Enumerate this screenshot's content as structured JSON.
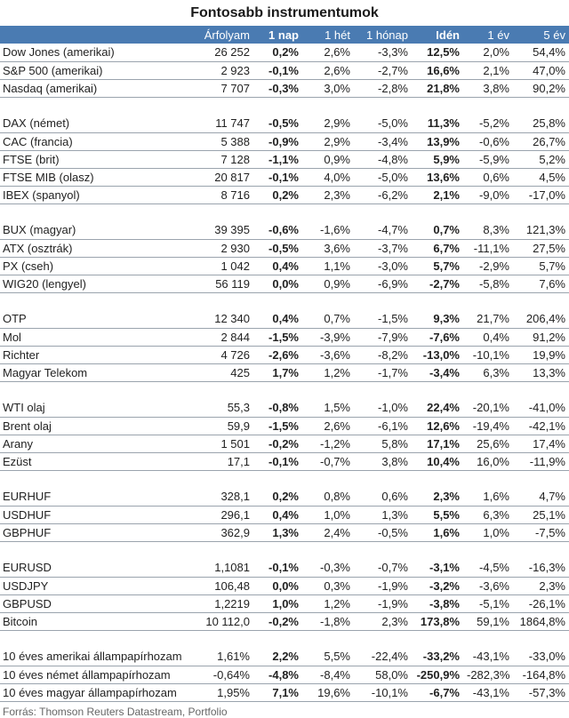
{
  "title": "Fontosabb instrumentumok",
  "columns": [
    "",
    "Árfolyam",
    "1 nap",
    "1 hét",
    "1 hónap",
    "Idén",
    "1 év",
    "5 év"
  ],
  "groups": [
    [
      [
        "Dow Jones (amerikai)",
        "26 252",
        "0,2%",
        "2,6%",
        "-3,3%",
        "12,5%",
        "2,0%",
        "54,4%"
      ],
      [
        "S&P 500 (amerikai)",
        "2 923",
        "-0,1%",
        "2,6%",
        "-2,7%",
        "16,6%",
        "2,1%",
        "47,0%"
      ],
      [
        "Nasdaq (amerikai)",
        "7 707",
        "-0,3%",
        "3,0%",
        "-2,8%",
        "21,8%",
        "3,8%",
        "90,2%"
      ]
    ],
    [
      [
        "DAX (német)",
        "11 747",
        "-0,5%",
        "2,9%",
        "-5,0%",
        "11,3%",
        "-5,2%",
        "25,8%"
      ],
      [
        "CAC (francia)",
        "5 388",
        "-0,9%",
        "2,9%",
        "-3,4%",
        "13,9%",
        "-0,6%",
        "26,7%"
      ],
      [
        "FTSE (brit)",
        "7 128",
        "-1,1%",
        "0,9%",
        "-4,8%",
        "5,9%",
        "-5,9%",
        "5,2%"
      ],
      [
        "FTSE MIB (olasz)",
        "20 817",
        "-0,1%",
        "4,0%",
        "-5,0%",
        "13,6%",
        "0,6%",
        "4,5%"
      ],
      [
        "IBEX (spanyol)",
        "8 716",
        "0,2%",
        "2,3%",
        "-6,2%",
        "2,1%",
        "-9,0%",
        "-17,0%"
      ]
    ],
    [
      [
        "BUX (magyar)",
        "39 395",
        "-0,6%",
        "-1,6%",
        "-4,7%",
        "0,7%",
        "8,3%",
        "121,3%"
      ],
      [
        "ATX (osztrák)",
        "2 930",
        "-0,5%",
        "3,6%",
        "-3,7%",
        "6,7%",
        "-11,1%",
        "27,5%"
      ],
      [
        "PX (cseh)",
        "1 042",
        "0,4%",
        "1,1%",
        "-3,0%",
        "5,7%",
        "-2,9%",
        "5,7%"
      ],
      [
        "WIG20 (lengyel)",
        "56 119",
        "0,0%",
        "0,9%",
        "-6,9%",
        "-2,7%",
        "-5,8%",
        "7,6%"
      ]
    ],
    [
      [
        "OTP",
        "12 340",
        "0,4%",
        "0,7%",
        "-1,5%",
        "9,3%",
        "21,7%",
        "206,4%"
      ],
      [
        "Mol",
        "2 844",
        "-1,5%",
        "-3,9%",
        "-7,9%",
        "-7,6%",
        "0,4%",
        "91,2%"
      ],
      [
        "Richter",
        "4 726",
        "-2,6%",
        "-3,6%",
        "-8,2%",
        "-13,0%",
        "-10,1%",
        "19,9%"
      ],
      [
        "Magyar Telekom",
        "425",
        "1,7%",
        "1,2%",
        "-1,7%",
        "-3,4%",
        "6,3%",
        "13,3%"
      ]
    ],
    [
      [
        "WTI olaj",
        "55,3",
        "-0,8%",
        "1,5%",
        "-1,0%",
        "22,4%",
        "-20,1%",
        "-41,0%"
      ],
      [
        "Brent olaj",
        "59,9",
        "-1,5%",
        "2,6%",
        "-6,1%",
        "12,6%",
        "-19,4%",
        "-42,1%"
      ],
      [
        "Arany",
        "1 501",
        "-0,2%",
        "-1,2%",
        "5,8%",
        "17,1%",
        "25,6%",
        "17,4%"
      ],
      [
        "Ezüst",
        "17,1",
        "-0,1%",
        "-0,7%",
        "3,8%",
        "10,4%",
        "16,0%",
        "-11,9%"
      ]
    ],
    [
      [
        "EURHUF",
        "328,1",
        "0,2%",
        "0,8%",
        "0,6%",
        "2,3%",
        "1,6%",
        "4,7%"
      ],
      [
        "USDHUF",
        "296,1",
        "0,4%",
        "1,0%",
        "1,3%",
        "5,5%",
        "6,3%",
        "25,1%"
      ],
      [
        "GBPHUF",
        "362,9",
        "1,3%",
        "2,4%",
        "-0,5%",
        "1,6%",
        "1,0%",
        "-7,5%"
      ]
    ],
    [
      [
        "EURUSD",
        "1,1081",
        "-0,1%",
        "-0,3%",
        "-0,7%",
        "-3,1%",
        "-4,5%",
        "-16,3%"
      ],
      [
        "USDJPY",
        "106,48",
        "0,0%",
        "0,3%",
        "-1,9%",
        "-3,2%",
        "-3,6%",
        "2,3%"
      ],
      [
        "GBPUSD",
        "1,2219",
        "1,0%",
        "1,2%",
        "-1,9%",
        "-3,8%",
        "-5,1%",
        "-26,1%"
      ],
      [
        "Bitcoin",
        "10 112,0",
        "-0,2%",
        "-1,8%",
        "2,3%",
        "173,8%",
        "59,1%",
        "1864,8%"
      ]
    ],
    [
      [
        "10 éves amerikai állampapírhozam",
        "1,61%",
        "2,2%",
        "5,5%",
        "-22,4%",
        "-33,2%",
        "-43,1%",
        "-33,0%"
      ],
      [
        "10 éves német állampapírhozam",
        "-0,64%",
        "-4,8%",
        "-8,4%",
        "58,0%",
        "-250,9%",
        "-282,3%",
        "-164,8%"
      ],
      [
        "10 éves magyar állampapírhozam",
        "1,95%",
        "7,1%",
        "19,6%",
        "-10,1%",
        "-6,7%",
        "-43,1%",
        "-57,3%"
      ]
    ]
  ],
  "source": "Forrás: Thomson Reuters Datastream, Portfolio"
}
